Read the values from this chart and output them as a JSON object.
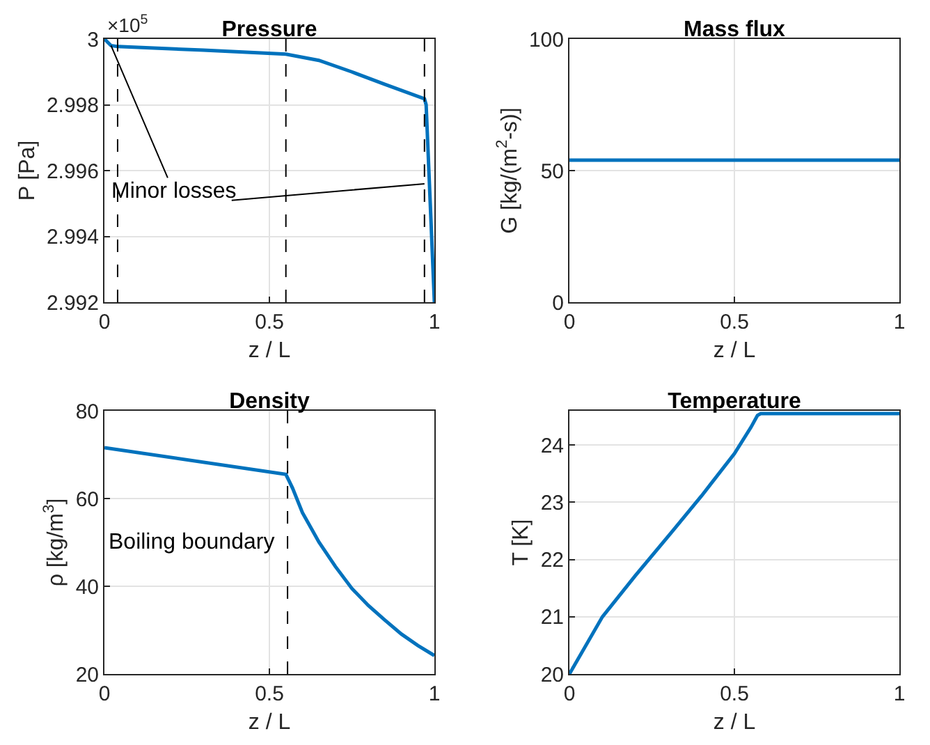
{
  "chart_data": [
    {
      "type": "line",
      "title": "Pressure",
      "xlabel": "z / L",
      "ylabel": "P [Pa]",
      "xlim": [
        0,
        1
      ],
      "xticks": [
        0,
        0.5,
        1
      ],
      "ylim": [
        2.992,
        3
      ],
      "yticks": [
        2.992,
        2.994,
        2.996,
        2.998,
        3
      ],
      "grid": true,
      "x": [
        0,
        0.02,
        0.04,
        0.3,
        0.55,
        0.65,
        0.75,
        0.85,
        0.97,
        0.975,
        1
      ],
      "series": [
        {
          "color": "#0072bd",
          "values": [
            3,
            2.9998,
            2.99977,
            2.99966,
            2.99954,
            2.99935,
            2.999,
            2.99862,
            2.99818,
            2.998,
            2.992
          ]
        }
      ],
      "ref_lines": [
        {
          "axis": "x",
          "value": 0.04,
          "label": null,
          "color": "#000000",
          "line_style": "dashed"
        },
        {
          "axis": "x",
          "value": 0.55,
          "label": null,
          "color": "#000000",
          "line_style": "dashed"
        },
        {
          "axis": "x",
          "value": 0.97,
          "label": null,
          "color": "#000000",
          "line_style": "dashed"
        }
      ],
      "annotations": [
        "×10$^{5}$",
        {
          "text": "Minor losses",
          "x": 0.02,
          "y": 2.9998
        }
      ]
    },
    {
      "type": "line",
      "title": "Mass flux",
      "xlabel": "z / L",
      "ylabel": "G [kg/(m$^{2}$-s)]",
      "xlim": [
        0,
        1
      ],
      "xticks": [
        0,
        0.5,
        1
      ],
      "ylim": [
        0,
        100
      ],
      "yticks": [
        0,
        50,
        100
      ],
      "grid": true,
      "x": [
        0,
        1
      ],
      "series": [
        {
          "color": "#0072bd",
          "values": [
            54,
            54
          ]
        }
      ]
    },
    {
      "type": "line",
      "title": "Density",
      "xlabel": "z / L",
      "ylabel": "ρ [kg/m$^{3}$]",
      "xlim": [
        0,
        1
      ],
      "xticks": [
        0,
        0.5,
        1
      ],
      "ylim": [
        20,
        80
      ],
      "yticks": [
        20,
        40,
        60,
        80
      ],
      "grid": true,
      "x": [
        0,
        0.55,
        0.57,
        0.6,
        0.65,
        0.7,
        0.75,
        0.8,
        0.85,
        0.9,
        0.95,
        1
      ],
      "series": [
        {
          "color": "#0072bd",
          "values": [
            71.6,
            65.5,
            62.4,
            56.8,
            50.1,
            44.5,
            39.5,
            35.6,
            32.3,
            29.1,
            26.5,
            24.2
          ]
        }
      ],
      "ref_lines": [
        {
          "axis": "x",
          "value": 0.555,
          "label": "Boiling boundary",
          "color": "#000000",
          "line_style": "dashed"
        }
      ]
    },
    {
      "type": "line",
      "title": "Temperature",
      "xlabel": "z / L",
      "ylabel": "T [K]",
      "xlim": [
        0,
        1
      ],
      "xticks": [
        0,
        0.5,
        1
      ],
      "ylim": [
        20,
        24.6
      ],
      "yticks": [
        20,
        21,
        22,
        23,
        24
      ],
      "grid": true,
      "x": [
        0,
        0.1,
        0.2,
        0.3,
        0.4,
        0.5,
        0.55,
        0.57,
        0.58,
        1
      ],
      "series": [
        {
          "color": "#0072bd",
          "values": [
            20,
            21.0,
            21.72,
            22.41,
            23.11,
            23.85,
            24.31,
            24.52,
            24.55,
            24.55
          ]
        }
      ]
    }
  ]
}
